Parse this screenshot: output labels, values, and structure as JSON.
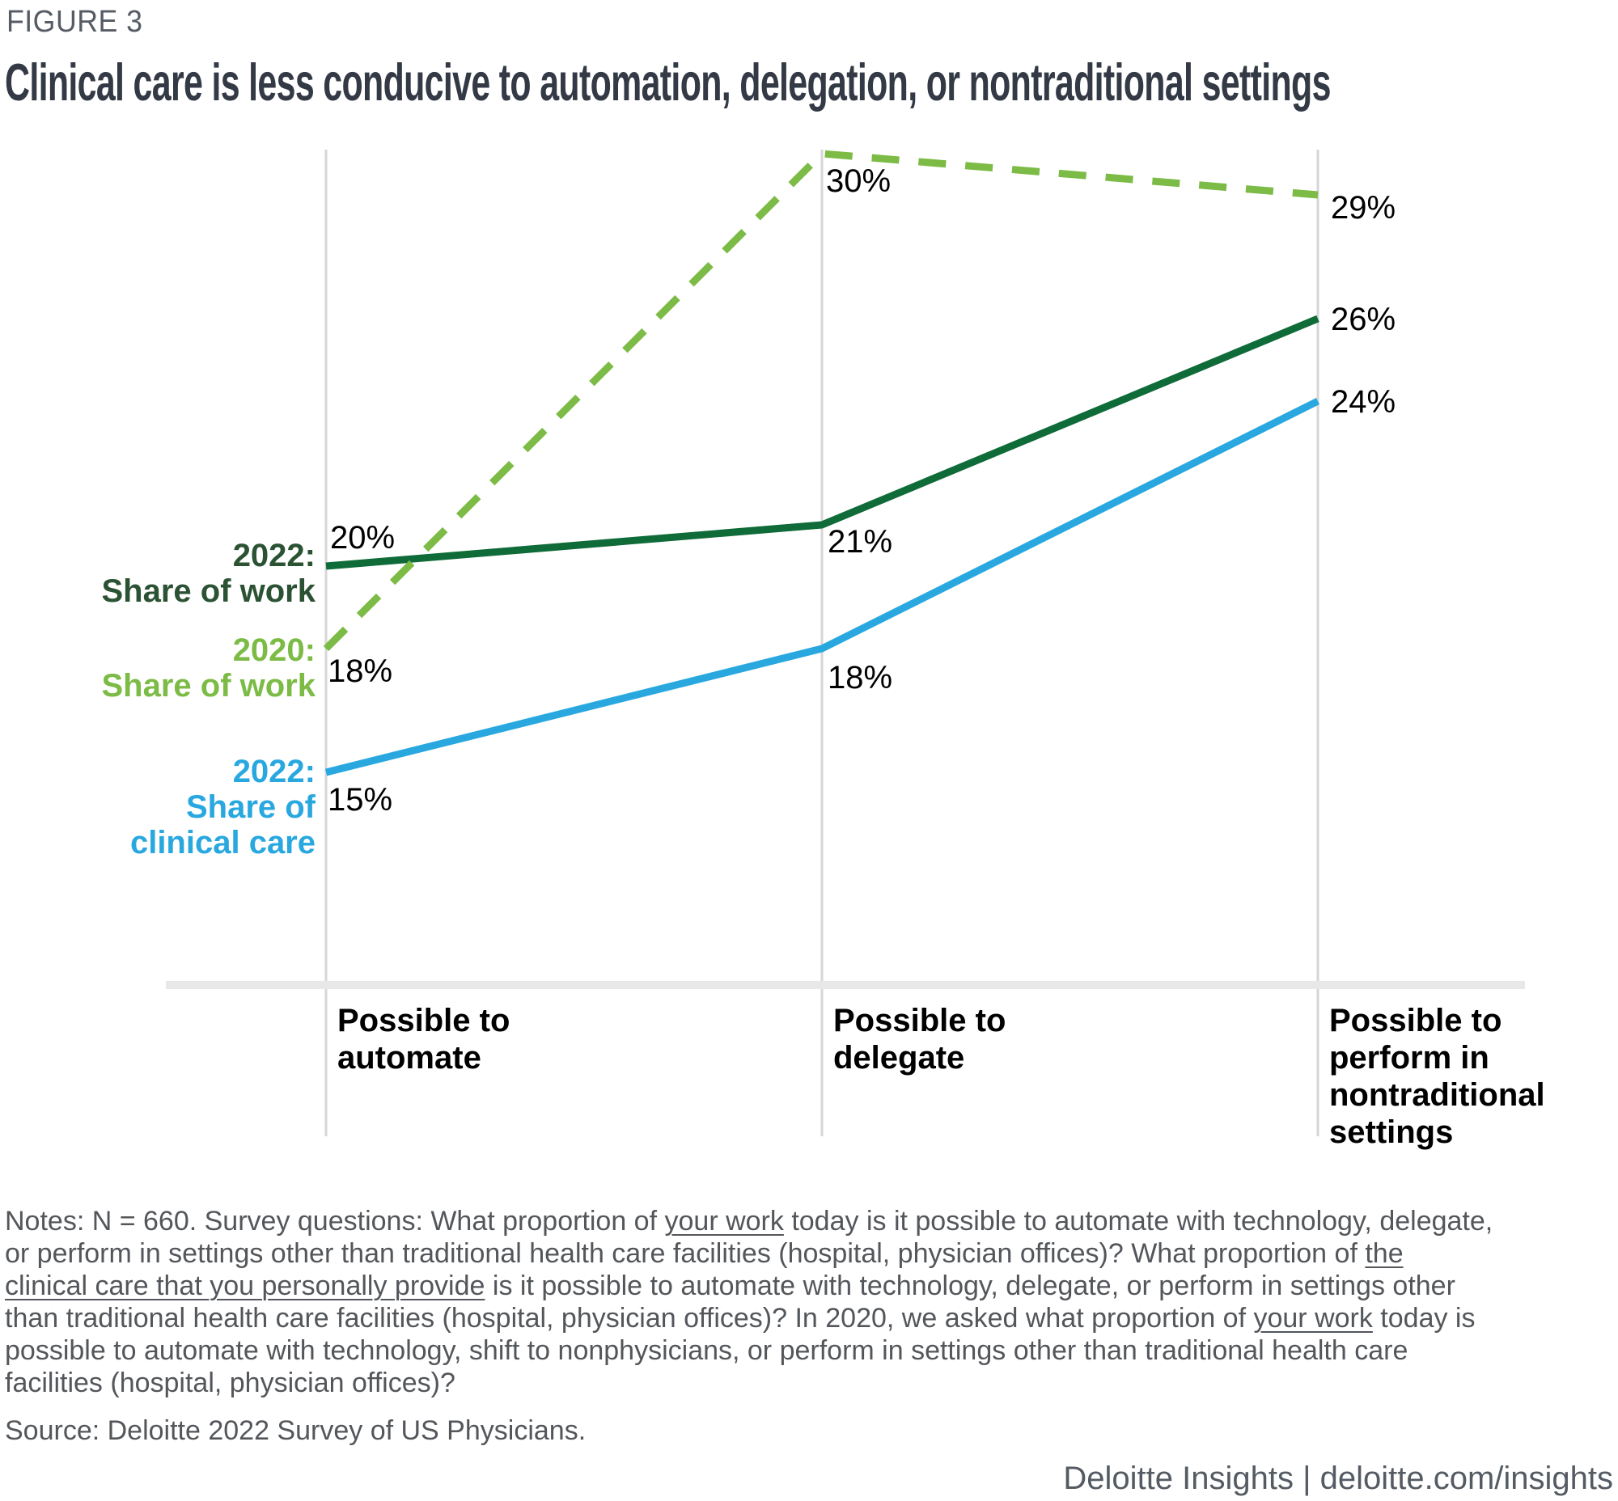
{
  "figure_label": "FIGURE 3",
  "title": "Clinical care is less conducive to automation, delegation, or nontraditional settings",
  "chart_data": {
    "type": "line",
    "unit": "%",
    "categories": [
      "Possible to automate",
      "Possible to delegate",
      "Possible to perform in nontraditional settings"
    ],
    "series": [
      {
        "name": "2022: Share of work",
        "values": [
          20,
          21,
          26
        ],
        "color": "#0F6B38",
        "label_color": "#2C5234",
        "style": "solid"
      },
      {
        "name": "2020: Share of work",
        "values": [
          18,
          30,
          29
        ],
        "color": "#7CBB45",
        "label_color": "#7CBB45",
        "style": "dashed"
      },
      {
        "name": "2022: Share of clinical care",
        "values": [
          15,
          18,
          24
        ],
        "color": "#29A8E0",
        "label_color": "#29A8E0",
        "style": "solid"
      }
    ],
    "value_labels": [
      "20%",
      "21%",
      "26%",
      "18%",
      "30%",
      "29%",
      "15%",
      "18%",
      "24%"
    ],
    "legend_position": "left",
    "gridlines": "vertical",
    "axis_baseline": true,
    "colors": {
      "gridline": "#D6D6D6",
      "baseline": "#E8E8E8",
      "value_label": "#000000",
      "category_label": "#000000"
    }
  },
  "notes": {
    "lines": [
      [
        {
          "t": "Notes: N = 660. Survey questions: What proportion of "
        },
        {
          "t": "your work",
          "u": true
        },
        {
          "t": " today is it possible to automate with technology, delegate,"
        }
      ],
      [
        {
          "t": "or perform in settings other than traditional health care facilities (hospital, physician offices)? What proportion of "
        },
        {
          "t": "the",
          "u": true
        }
      ],
      [
        {
          "t": "clinical care that you personally provide",
          "u": true
        },
        {
          "t": " is it possible to automate with technology, delegate, or perform in settings other"
        }
      ],
      [
        {
          "t": "than traditional health care facilities (hospital, physician offices)? In 2020, we asked what proportion of "
        },
        {
          "t": "your work",
          "u": true
        },
        {
          "t": " today is"
        }
      ],
      [
        {
          "t": "possible to automate with technology, shift to nonphysicians, or perform in settings other than traditional health care"
        }
      ],
      [
        {
          "t": "facilities (hospital, physician offices)?"
        }
      ]
    ]
  },
  "source": "Source: Deloitte 2022 Survey of US Physicians.",
  "footer": "Deloitte Insights | deloitte.com/insights"
}
